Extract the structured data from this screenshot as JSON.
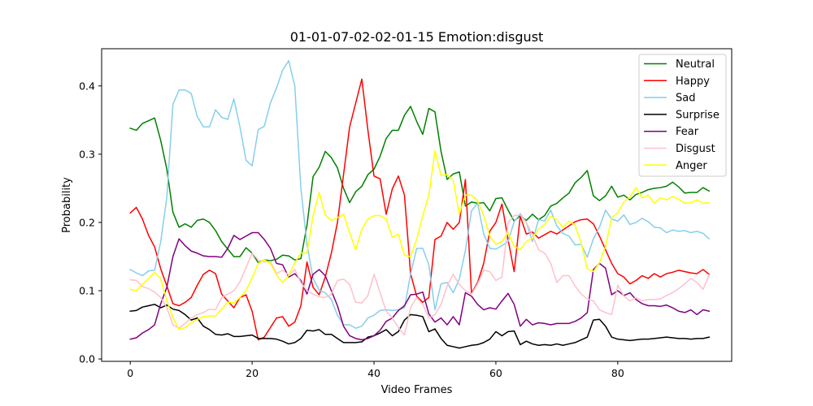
{
  "chart_data": {
    "type": "line",
    "title": "01-01-07-02-02-01-15 Emotion:disgust",
    "xlabel": "Video Frames",
    "ylabel": "Probability",
    "xlim": [
      -4.7,
      98.7
    ],
    "ylim": [
      -0.0035,
      0.4545
    ],
    "xticks": [
      0,
      20,
      40,
      60,
      80
    ],
    "yticks": [
      0.0,
      0.1,
      0.2,
      0.3,
      0.4
    ],
    "ytick_labels": [
      "0.0",
      "0.1",
      "0.2",
      "0.3",
      "0.4"
    ],
    "grid": false,
    "legend_position": "upper right",
    "series": [
      {
        "name": "Neutral",
        "color": "#008000",
        "values": [
          0.338,
          0.335,
          0.345,
          0.349,
          0.353,
          0.32,
          0.278,
          0.215,
          0.193,
          0.198,
          0.193,
          0.203,
          0.205,
          0.2,
          0.188,
          0.172,
          0.161,
          0.15,
          0.15,
          0.163,
          0.155,
          0.141,
          0.145,
          0.144,
          0.146,
          0.152,
          0.151,
          0.145,
          0.147,
          0.196,
          0.267,
          0.281,
          0.304,
          0.295,
          0.28,
          0.25,
          0.229,
          0.245,
          0.253,
          0.27,
          0.278,
          0.297,
          0.323,
          0.335,
          0.335,
          0.357,
          0.37,
          0.348,
          0.329,
          0.367,
          0.362,
          0.304,
          0.263,
          0.271,
          0.274,
          0.224,
          0.23,
          0.228,
          0.229,
          0.217,
          0.235,
          0.236,
          0.218,
          0.202,
          0.21,
          0.203,
          0.212,
          0.204,
          0.21,
          0.224,
          0.228,
          0.236,
          0.243,
          0.258,
          0.266,
          0.276,
          0.239,
          0.232,
          0.239,
          0.253,
          0.237,
          0.24,
          0.233,
          0.241,
          0.244,
          0.248,
          0.25,
          0.251,
          0.253,
          0.259,
          0.252,
          0.243,
          0.244,
          0.244,
          0.251,
          0.246
        ]
      },
      {
        "name": "Happy",
        "color": "#ff0000",
        "values": [
          0.214,
          0.222,
          0.205,
          0.181,
          0.164,
          0.132,
          0.107,
          0.081,
          0.078,
          0.083,
          0.09,
          0.108,
          0.124,
          0.13,
          0.125,
          0.095,
          0.085,
          0.075,
          0.09,
          0.094,
          0.07,
          0.028,
          0.032,
          0.046,
          0.06,
          0.062,
          0.048,
          0.054,
          0.078,
          0.142,
          0.105,
          0.094,
          0.12,
          0.155,
          0.2,
          0.27,
          0.34,
          0.375,
          0.41,
          0.335,
          0.268,
          0.264,
          0.212,
          0.249,
          0.268,
          0.24,
          0.125,
          0.092,
          0.083,
          0.09,
          0.175,
          0.18,
          0.2,
          0.19,
          0.2,
          0.263,
          0.096,
          0.112,
          0.14,
          0.187,
          0.2,
          0.227,
          0.175,
          0.128,
          0.209,
          0.183,
          0.186,
          0.177,
          0.182,
          0.187,
          0.183,
          0.189,
          0.195,
          0.201,
          0.204,
          0.205,
          0.198,
          0.18,
          0.16,
          0.14,
          0.125,
          0.12,
          0.11,
          0.115,
          0.122,
          0.118,
          0.125,
          0.12,
          0.125,
          0.127,
          0.13,
          0.128,
          0.126,
          0.125,
          0.131,
          0.124
        ]
      },
      {
        "name": "Sad",
        "color": "#87ceeb",
        "values": [
          0.131,
          0.126,
          0.122,
          0.129,
          0.13,
          0.172,
          0.237,
          0.373,
          0.394,
          0.394,
          0.389,
          0.355,
          0.34,
          0.34,
          0.365,
          0.354,
          0.351,
          0.381,
          0.34,
          0.291,
          0.283,
          0.336,
          0.341,
          0.375,
          0.397,
          0.423,
          0.437,
          0.4,
          0.25,
          0.168,
          0.118,
          0.101,
          0.097,
          0.087,
          0.064,
          0.05,
          0.05,
          0.045,
          0.048,
          0.06,
          0.064,
          0.071,
          0.072,
          0.071,
          0.072,
          0.075,
          0.124,
          0.162,
          0.162,
          0.138,
          0.072,
          0.11,
          0.112,
          0.097,
          0.117,
          0.159,
          0.217,
          0.228,
          0.183,
          0.162,
          0.161,
          0.166,
          0.172,
          0.201,
          0.213,
          0.2,
          0.172,
          0.204,
          0.202,
          0.218,
          0.195,
          0.184,
          0.18,
          0.167,
          0.168,
          0.149,
          0.176,
          0.193,
          0.218,
          0.205,
          0.202,
          0.211,
          0.197,
          0.2,
          0.206,
          0.201,
          0.193,
          0.192,
          0.185,
          0.189,
          0.187,
          0.188,
          0.185,
          0.187,
          0.184,
          0.176
        ]
      },
      {
        "name": "Surprise",
        "color": "#000000",
        "values": [
          0.07,
          0.071,
          0.076,
          0.078,
          0.08,
          0.075,
          0.079,
          0.073,
          0.071,
          0.065,
          0.057,
          0.06,
          0.048,
          0.043,
          0.036,
          0.035,
          0.037,
          0.033,
          0.033,
          0.034,
          0.035,
          0.03,
          0.03,
          0.03,
          0.029,
          0.026,
          0.022,
          0.024,
          0.03,
          0.042,
          0.041,
          0.043,
          0.036,
          0.036,
          0.03,
          0.024,
          0.024,
          0.024,
          0.025,
          0.032,
          0.034,
          0.038,
          0.043,
          0.034,
          0.04,
          0.057,
          0.065,
          0.064,
          0.062,
          0.04,
          0.044,
          0.03,
          0.02,
          0.018,
          0.016,
          0.018,
          0.02,
          0.021,
          0.024,
          0.029,
          0.04,
          0.034,
          0.04,
          0.041,
          0.021,
          0.026,
          0.022,
          0.02,
          0.021,
          0.02,
          0.022,
          0.02,
          0.022,
          0.024,
          0.028,
          0.032,
          0.057,
          0.058,
          0.048,
          0.032,
          0.029,
          0.028,
          0.027,
          0.028,
          0.029,
          0.029,
          0.03,
          0.031,
          0.032,
          0.031,
          0.03,
          0.03,
          0.029,
          0.03,
          0.03,
          0.032
        ]
      },
      {
        "name": "Fear",
        "color": "#800080",
        "values": [
          0.029,
          0.031,
          0.038,
          0.043,
          0.05,
          0.081,
          0.105,
          0.15,
          0.176,
          0.166,
          0.158,
          0.155,
          0.151,
          0.15,
          0.15,
          0.149,
          0.162,
          0.181,
          0.175,
          0.18,
          0.185,
          0.185,
          0.175,
          0.162,
          0.14,
          0.138,
          0.12,
          0.125,
          0.115,
          0.095,
          0.124,
          0.131,
          0.122,
          0.1,
          0.078,
          0.048,
          0.034,
          0.03,
          0.028,
          0.03,
          0.034,
          0.042,
          0.055,
          0.06,
          0.071,
          0.078,
          0.094,
          0.095,
          0.098,
          0.066,
          0.054,
          0.06,
          0.05,
          0.062,
          0.05,
          0.097,
          0.092,
          0.08,
          0.072,
          0.075,
          0.073,
          0.085,
          0.096,
          0.08,
          0.048,
          0.058,
          0.05,
          0.053,
          0.052,
          0.05,
          0.052,
          0.052,
          0.052,
          0.055,
          0.06,
          0.068,
          0.131,
          0.14,
          0.133,
          0.094,
          0.1,
          0.093,
          0.097,
          0.087,
          0.081,
          0.078,
          0.078,
          0.077,
          0.079,
          0.075,
          0.07,
          0.068,
          0.072,
          0.065,
          0.072,
          0.07
        ]
      },
      {
        "name": "Disgust",
        "color": "#ffc0cb",
        "values": [
          0.116,
          0.115,
          0.106,
          0.103,
          0.098,
          0.09,
          0.075,
          0.05,
          0.045,
          0.052,
          0.06,
          0.065,
          0.068,
          0.073,
          0.072,
          0.09,
          0.095,
          0.1,
          0.113,
          0.134,
          0.155,
          0.145,
          0.142,
          0.143,
          0.125,
          0.13,
          0.123,
          0.131,
          0.112,
          0.1,
          0.095,
          0.091,
          0.09,
          0.095,
          0.115,
          0.117,
          0.109,
          0.083,
          0.082,
          0.093,
          0.124,
          0.097,
          0.07,
          0.06,
          0.046,
          0.035,
          0.075,
          0.09,
          0.08,
          0.06,
          0.065,
          0.08,
          0.107,
          0.124,
          0.109,
          0.1,
          0.095,
          0.11,
          0.13,
          0.128,
          0.115,
          0.12,
          0.2,
          0.21,
          0.211,
          0.2,
          0.182,
          0.16,
          0.155,
          0.14,
          0.112,
          0.122,
          0.122,
          0.107,
          0.095,
          0.088,
          0.085,
          0.072,
          0.068,
          0.065,
          0.108,
          0.092,
          0.085,
          0.09,
          0.085,
          0.087,
          0.087,
          0.088,
          0.093,
          0.097,
          0.103,
          0.11,
          0.118,
          0.112,
          0.102,
          0.123
        ]
      },
      {
        "name": "Anger",
        "color": "#ffff00",
        "values": [
          0.102,
          0.1,
          0.109,
          0.118,
          0.127,
          0.118,
          0.085,
          0.061,
          0.043,
          0.046,
          0.053,
          0.058,
          0.062,
          0.063,
          0.063,
          0.073,
          0.083,
          0.082,
          0.09,
          0.1,
          0.119,
          0.14,
          0.145,
          0.14,
          0.123,
          0.112,
          0.122,
          0.141,
          0.155,
          0.155,
          0.21,
          0.244,
          0.211,
          0.203,
          0.207,
          0.212,
          0.185,
          0.16,
          0.19,
          0.205,
          0.21,
          0.21,
          0.205,
          0.178,
          0.183,
          0.152,
          0.15,
          0.175,
          0.21,
          0.24,
          0.305,
          0.269,
          0.27,
          0.262,
          0.212,
          0.24,
          0.24,
          0.232,
          0.21,
          0.18,
          0.168,
          0.172,
          0.185,
          0.165,
          0.16,
          0.172,
          0.177,
          0.19,
          0.197,
          0.209,
          0.204,
          0.193,
          0.202,
          0.196,
          0.17,
          0.132,
          0.128,
          0.141,
          0.165,
          0.207,
          0.214,
          0.23,
          0.237,
          0.251,
          0.236,
          0.24,
          0.228,
          0.236,
          0.233,
          0.238,
          0.234,
          0.228,
          0.229,
          0.233,
          0.228,
          0.229
        ]
      }
    ]
  }
}
